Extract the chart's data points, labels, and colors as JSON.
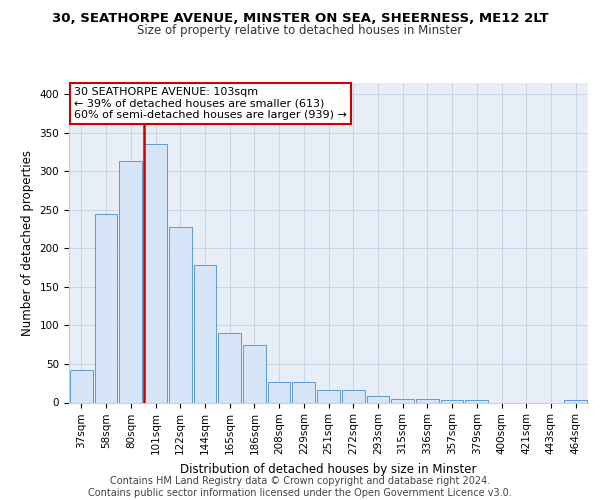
{
  "title1": "30, SEATHORPE AVENUE, MINSTER ON SEA, SHEERNESS, ME12 2LT",
  "title2": "Size of property relative to detached houses in Minster",
  "xlabel": "Distribution of detached houses by size in Minster",
  "ylabel": "Number of detached properties",
  "bar_labels": [
    "37sqm",
    "58sqm",
    "80sqm",
    "101sqm",
    "122sqm",
    "144sqm",
    "165sqm",
    "186sqm",
    "208sqm",
    "229sqm",
    "251sqm",
    "272sqm",
    "293sqm",
    "315sqm",
    "336sqm",
    "357sqm",
    "379sqm",
    "400sqm",
    "421sqm",
    "443sqm",
    "464sqm"
  ],
  "bar_heights": [
    42,
    245,
    313,
    335,
    228,
    178,
    90,
    74,
    26,
    26,
    16,
    16,
    9,
    4,
    5,
    3,
    3,
    0,
    0,
    0,
    3
  ],
  "bar_color": "#d6e4f7",
  "bar_edge_color": "#5b9bd5",
  "red_line_color": "#cc0000",
  "annotation_line1": "30 SEATHORPE AVENUE: 103sqm",
  "annotation_line2": "← 39% of detached houses are smaller (613)",
  "annotation_line3": "60% of semi-detached houses are larger (939) →",
  "annotation_box_color": "#ffffff",
  "annotation_box_edge": "#cc0000",
  "ylim": [
    0,
    415
  ],
  "yticks": [
    0,
    50,
    100,
    150,
    200,
    250,
    300,
    350,
    400
  ],
  "footer_text": "Contains HM Land Registry data © Crown copyright and database right 2024.\nContains public sector information licensed under the Open Government Licence v3.0.",
  "background_color": "#e8eef8",
  "grid_color": "#c8d0e0",
  "title1_fontsize": 9.5,
  "title2_fontsize": 8.5,
  "xlabel_fontsize": 8.5,
  "ylabel_fontsize": 8.5,
  "tick_fontsize": 7.5,
  "annotation_fontsize": 8,
  "footer_fontsize": 7
}
